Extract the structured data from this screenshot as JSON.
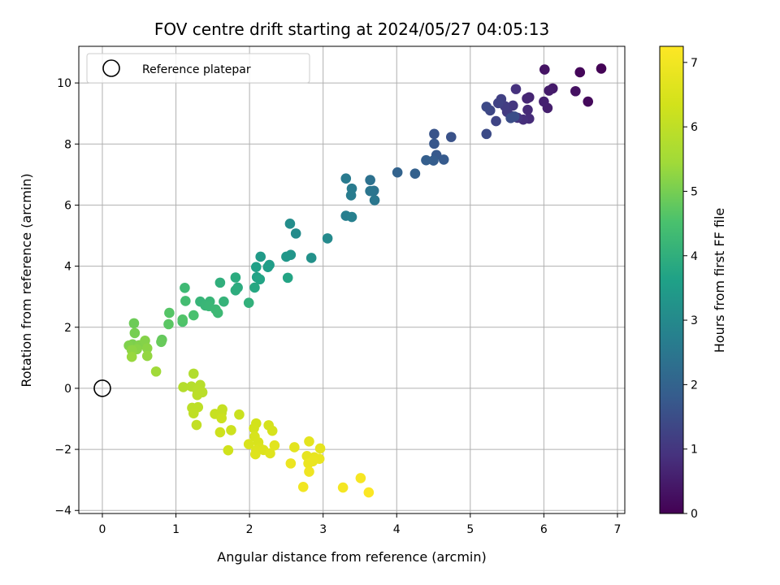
{
  "chart_data": {
    "type": "scatter",
    "title": "FOV centre drift starting at 2024/05/27 04:05:13",
    "xlabel": "Angular distance from reference (arcmin)",
    "ylabel": "Rotation from reference (arcmin)",
    "xlim": [
      -0.32,
      7.1
    ],
    "ylim": [
      -4.1,
      11.2
    ],
    "xticks": [
      0,
      1,
      2,
      3,
      4,
      5,
      6,
      7
    ],
    "yticks": [
      -4,
      -2,
      0,
      2,
      4,
      6,
      8,
      10
    ],
    "grid": true,
    "legend": {
      "position": "top-left",
      "entries": [
        "Reference platepar"
      ]
    },
    "reference_point": {
      "x": 0,
      "y": 0
    },
    "colorbar": {
      "label": "Hours from first FF file",
      "min": 0,
      "max": 7.25,
      "ticks": [
        0,
        1,
        2,
        3,
        4,
        5,
        6,
        7
      ],
      "colormap": "viridis"
    },
    "points": [
      {
        "x": 6.78,
        "y": 10.47,
        "h": 0.05
      },
      {
        "x": 6.49,
        "y": 10.35,
        "h": 0.1
      },
      {
        "x": 6.6,
        "y": 9.39,
        "h": 0.15
      },
      {
        "x": 6.43,
        "y": 9.73,
        "h": 0.3
      },
      {
        "x": 6.01,
        "y": 10.44,
        "h": 0.35
      },
      {
        "x": 6.12,
        "y": 9.82,
        "h": 0.45
      },
      {
        "x": 6.07,
        "y": 9.75,
        "h": 0.5
      },
      {
        "x": 6.05,
        "y": 9.18,
        "h": 0.55
      },
      {
        "x": 6.0,
        "y": 9.39,
        "h": 0.6
      },
      {
        "x": 5.8,
        "y": 9.53,
        "h": 0.65
      },
      {
        "x": 5.77,
        "y": 9.49,
        "h": 0.7
      },
      {
        "x": 5.78,
        "y": 9.12,
        "h": 0.75
      },
      {
        "x": 5.8,
        "y": 8.83,
        "h": 0.8
      },
      {
        "x": 5.72,
        "y": 8.8,
        "h": 0.85
      },
      {
        "x": 5.62,
        "y": 9.8,
        "h": 0.9
      },
      {
        "x": 5.64,
        "y": 8.86,
        "h": 0.95
      },
      {
        "x": 5.58,
        "y": 9.26,
        "h": 1.0
      },
      {
        "x": 5.55,
        "y": 8.92,
        "h": 1.05
      },
      {
        "x": 5.5,
        "y": 9.05,
        "h": 1.1
      },
      {
        "x": 5.47,
        "y": 9.24,
        "h": 1.15
      },
      {
        "x": 5.42,
        "y": 9.47,
        "h": 1.2
      },
      {
        "x": 5.38,
        "y": 9.34,
        "h": 1.25
      },
      {
        "x": 5.35,
        "y": 8.75,
        "h": 1.3
      },
      {
        "x": 5.27,
        "y": 9.1,
        "h": 1.35
      },
      {
        "x": 5.22,
        "y": 9.22,
        "h": 1.4
      },
      {
        "x": 5.22,
        "y": 8.33,
        "h": 1.45
      },
      {
        "x": 5.55,
        "y": 8.85,
        "h": 1.5
      },
      {
        "x": 5.6,
        "y": 8.9,
        "h": 1.52
      },
      {
        "x": 4.74,
        "y": 8.23,
        "h": 1.6
      },
      {
        "x": 4.51,
        "y": 8.33,
        "h": 1.65
      },
      {
        "x": 4.51,
        "y": 8.01,
        "h": 1.7
      },
      {
        "x": 4.54,
        "y": 7.64,
        "h": 1.75
      },
      {
        "x": 4.64,
        "y": 7.49,
        "h": 1.8
      },
      {
        "x": 4.5,
        "y": 7.46,
        "h": 1.85
      },
      {
        "x": 4.4,
        "y": 7.47,
        "h": 1.9
      },
      {
        "x": 4.25,
        "y": 7.03,
        "h": 1.95
      },
      {
        "x": 4.01,
        "y": 7.07,
        "h": 2.0
      },
      {
        "x": 3.64,
        "y": 6.82,
        "h": 2.35
      },
      {
        "x": 3.69,
        "y": 6.47,
        "h": 2.4
      },
      {
        "x": 3.64,
        "y": 6.46,
        "h": 2.45
      },
      {
        "x": 3.7,
        "y": 6.16,
        "h": 2.5
      },
      {
        "x": 3.31,
        "y": 6.87,
        "h": 2.6
      },
      {
        "x": 3.39,
        "y": 6.54,
        "h": 2.62
      },
      {
        "x": 3.38,
        "y": 6.32,
        "h": 2.65
      },
      {
        "x": 3.31,
        "y": 5.65,
        "h": 2.7
      },
      {
        "x": 3.39,
        "y": 5.61,
        "h": 2.75
      },
      {
        "x": 3.06,
        "y": 4.91,
        "h": 3.0
      },
      {
        "x": 2.63,
        "y": 5.07,
        "h": 3.05
      },
      {
        "x": 2.55,
        "y": 5.39,
        "h": 3.1
      },
      {
        "x": 2.84,
        "y": 4.27,
        "h": 3.2
      },
      {
        "x": 2.56,
        "y": 4.37,
        "h": 3.3
      },
      {
        "x": 2.5,
        "y": 4.31,
        "h": 3.35
      },
      {
        "x": 2.15,
        "y": 4.31,
        "h": 3.45
      },
      {
        "x": 2.27,
        "y": 4.04,
        "h": 3.5
      },
      {
        "x": 2.25,
        "y": 3.97,
        "h": 3.55
      },
      {
        "x": 2.09,
        "y": 3.97,
        "h": 3.6
      },
      {
        "x": 2.1,
        "y": 3.64,
        "h": 3.65
      },
      {
        "x": 2.14,
        "y": 3.57,
        "h": 3.7
      },
      {
        "x": 2.52,
        "y": 3.62,
        "h": 3.72
      },
      {
        "x": 2.07,
        "y": 3.3,
        "h": 3.8
      },
      {
        "x": 1.81,
        "y": 3.63,
        "h": 3.9
      },
      {
        "x": 1.84,
        "y": 3.3,
        "h": 3.92
      },
      {
        "x": 1.81,
        "y": 3.21,
        "h": 3.95
      },
      {
        "x": 1.6,
        "y": 3.46,
        "h": 4.0
      },
      {
        "x": 1.99,
        "y": 2.8,
        "h": 4.05
      },
      {
        "x": 1.65,
        "y": 2.84,
        "h": 4.1
      },
      {
        "x": 1.33,
        "y": 2.84,
        "h": 4.15
      },
      {
        "x": 1.46,
        "y": 2.84,
        "h": 4.18
      },
      {
        "x": 1.4,
        "y": 2.71,
        "h": 4.2
      },
      {
        "x": 1.45,
        "y": 2.69,
        "h": 4.22
      },
      {
        "x": 1.54,
        "y": 2.58,
        "h": 4.25
      },
      {
        "x": 1.57,
        "y": 2.47,
        "h": 4.27
      },
      {
        "x": 1.12,
        "y": 3.29,
        "h": 4.3
      },
      {
        "x": 1.13,
        "y": 2.86,
        "h": 4.4
      },
      {
        "x": 1.24,
        "y": 2.39,
        "h": 4.5
      },
      {
        "x": 1.09,
        "y": 2.18,
        "h": 4.55
      },
      {
        "x": 1.09,
        "y": 2.25,
        "h": 4.6
      },
      {
        "x": 0.91,
        "y": 2.47,
        "h": 4.65
      },
      {
        "x": 0.9,
        "y": 2.1,
        "h": 4.7
      },
      {
        "x": 0.81,
        "y": 1.59,
        "h": 4.8
      },
      {
        "x": 0.8,
        "y": 1.52,
        "h": 4.85
      },
      {
        "x": 0.43,
        "y": 2.13,
        "h": 4.9
      },
      {
        "x": 0.44,
        "y": 1.81,
        "h": 5.0
      },
      {
        "x": 0.41,
        "y": 1.44,
        "h": 5.05
      },
      {
        "x": 0.36,
        "y": 1.4,
        "h": 5.1
      },
      {
        "x": 0.5,
        "y": 1.41,
        "h": 5.12
      },
      {
        "x": 0.58,
        "y": 1.56,
        "h": 5.15
      },
      {
        "x": 0.47,
        "y": 1.28,
        "h": 5.2
      },
      {
        "x": 0.61,
        "y": 1.31,
        "h": 5.22
      },
      {
        "x": 0.4,
        "y": 1.25,
        "h": 5.25
      },
      {
        "x": 0.61,
        "y": 1.06,
        "h": 5.3
      },
      {
        "x": 0.4,
        "y": 1.03,
        "h": 5.35
      },
      {
        "x": 0.73,
        "y": 0.55,
        "h": 5.45
      },
      {
        "x": 1.24,
        "y": 0.48,
        "h": 5.75
      },
      {
        "x": 1.1,
        "y": 0.04,
        "h": 5.8
      },
      {
        "x": 1.21,
        "y": 0.06,
        "h": 5.82
      },
      {
        "x": 1.33,
        "y": 0.11,
        "h": 5.85
      },
      {
        "x": 1.29,
        "y": -0.06,
        "h": 5.87
      },
      {
        "x": 1.36,
        "y": -0.13,
        "h": 5.9
      },
      {
        "x": 1.29,
        "y": -0.22,
        "h": 5.92
      },
      {
        "x": 1.22,
        "y": -0.64,
        "h": 5.95
      },
      {
        "x": 1.3,
        "y": -0.62,
        "h": 5.97
      },
      {
        "x": 1.24,
        "y": -0.82,
        "h": 6.0
      },
      {
        "x": 1.28,
        "y": -1.2,
        "h": 6.05
      },
      {
        "x": 1.63,
        "y": -0.69,
        "h": 6.1
      },
      {
        "x": 1.62,
        "y": -0.81,
        "h": 6.12
      },
      {
        "x": 1.53,
        "y": -0.84,
        "h": 6.15
      },
      {
        "x": 1.86,
        "y": -0.86,
        "h": 6.2
      },
      {
        "x": 1.62,
        "y": -0.98,
        "h": 6.22
      },
      {
        "x": 1.75,
        "y": -1.37,
        "h": 6.25
      },
      {
        "x": 1.6,
        "y": -1.44,
        "h": 6.27
      },
      {
        "x": 1.71,
        "y": -2.03,
        "h": 6.3
      },
      {
        "x": 2.09,
        "y": -1.15,
        "h": 6.35
      },
      {
        "x": 2.06,
        "y": -1.31,
        "h": 6.37
      },
      {
        "x": 2.26,
        "y": -1.21,
        "h": 6.4
      },
      {
        "x": 2.31,
        "y": -1.39,
        "h": 6.42
      },
      {
        "x": 2.07,
        "y": -1.58,
        "h": 6.45
      },
      {
        "x": 2.12,
        "y": -1.77,
        "h": 6.47
      },
      {
        "x": 1.99,
        "y": -1.83,
        "h": 6.5
      },
      {
        "x": 2.14,
        "y": -1.96,
        "h": 6.52
      },
      {
        "x": 2.09,
        "y": -2.03,
        "h": 6.55
      },
      {
        "x": 2.19,
        "y": -2.02,
        "h": 6.57
      },
      {
        "x": 2.08,
        "y": -2.16,
        "h": 6.6
      },
      {
        "x": 2.28,
        "y": -2.13,
        "h": 6.62
      },
      {
        "x": 2.34,
        "y": -1.87,
        "h": 6.65
      },
      {
        "x": 2.61,
        "y": -1.93,
        "h": 6.7
      },
      {
        "x": 2.81,
        "y": -1.74,
        "h": 6.72
      },
      {
        "x": 2.96,
        "y": -1.97,
        "h": 6.75
      },
      {
        "x": 2.78,
        "y": -2.22,
        "h": 6.77
      },
      {
        "x": 2.88,
        "y": -2.26,
        "h": 6.8
      },
      {
        "x": 2.95,
        "y": -2.31,
        "h": 6.82
      },
      {
        "x": 2.86,
        "y": -2.39,
        "h": 6.85
      },
      {
        "x": 2.8,
        "y": -2.46,
        "h": 6.87
      },
      {
        "x": 2.56,
        "y": -2.46,
        "h": 6.9
      },
      {
        "x": 2.81,
        "y": -2.73,
        "h": 6.95
      },
      {
        "x": 2.73,
        "y": -3.23,
        "h": 7.0
      },
      {
        "x": 3.27,
        "y": -3.25,
        "h": 7.05
      },
      {
        "x": 3.51,
        "y": -2.94,
        "h": 7.1
      },
      {
        "x": 3.62,
        "y": -3.41,
        "h": 7.2
      }
    ]
  }
}
